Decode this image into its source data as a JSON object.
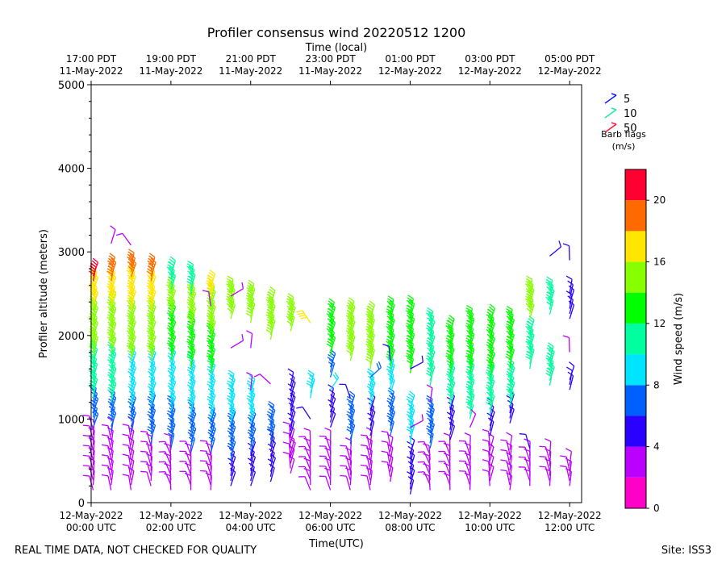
{
  "chart_data": {
    "type": "wind-barb profiler",
    "title": "Profiler consensus wind 20220512 1200",
    "top_axis_label": "Time (local)",
    "xlabel": "Time(UTC)",
    "ylabel": "Profiler altitude (meters)",
    "colorbar_label": "Wind speed (m/s)",
    "footer_left": "REAL TIME DATA, NOT CHECKED FOR QUALITY",
    "footer_right": "Site: ISS3",
    "x_range_hours": [
      0,
      12.3
    ],
    "ylim": [
      0,
      5000
    ],
    "grid": false,
    "y_ticks": [
      {
        "value": 0,
        "label": "0"
      },
      {
        "value": 1000,
        "label": "1000"
      },
      {
        "value": 2000,
        "label": "2000"
      },
      {
        "value": 3000,
        "label": "3000"
      },
      {
        "value": 4000,
        "label": "4000"
      },
      {
        "value": 5000,
        "label": "5000"
      }
    ],
    "x_ticks_utc": [
      {
        "hour": 0,
        "line1": "12-May-2022",
        "line2": "00:00 UTC"
      },
      {
        "hour": 2,
        "line1": "12-May-2022",
        "line2": "02:00 UTC"
      },
      {
        "hour": 4,
        "line1": "12-May-2022",
        "line2": "04:00 UTC"
      },
      {
        "hour": 6,
        "line1": "12-May-2022",
        "line2": "06:00 UTC"
      },
      {
        "hour": 8,
        "line1": "12-May-2022",
        "line2": "08:00 UTC"
      },
      {
        "hour": 10,
        "line1": "12-May-2022",
        "line2": "10:00 UTC"
      },
      {
        "hour": 12,
        "line1": "12-May-2022",
        "line2": "12:00 UTC"
      }
    ],
    "x_ticks_local": [
      {
        "hour": 0,
        "line1": "17:00 PDT",
        "line2": "11-May-2022"
      },
      {
        "hour": 2,
        "line1": "19:00 PDT",
        "line2": "11-May-2022"
      },
      {
        "hour": 4,
        "line1": "21:00 PDT",
        "line2": "11-May-2022"
      },
      {
        "hour": 6,
        "line1": "23:00 PDT",
        "line2": "11-May-2022"
      },
      {
        "hour": 8,
        "line1": "01:00 PDT",
        "line2": "12-May-2022"
      },
      {
        "hour": 10,
        "line1": "03:00 PDT",
        "line2": "12-May-2022"
      },
      {
        "hour": 12,
        "line1": "05:00 PDT",
        "line2": "12-May-2022"
      }
    ],
    "legend": {
      "entries": [
        {
          "label": "5",
          "color": "#1a1aff"
        },
        {
          "label": "10",
          "color": "#1fe9a0"
        },
        {
          "label": "50",
          "color": "#ff1a3a"
        }
      ],
      "title_line1": "Barb flags",
      "title_line2": "(m/s)"
    },
    "colorbar": {
      "min": 0,
      "max": 22,
      "ticks": [
        0,
        4,
        8,
        12,
        16,
        20
      ],
      "bands": [
        "#ff00c8",
        "#bb00ff",
        "#2a00ff",
        "#0060ff",
        "#00e5ff",
        "#00ff9e",
        "#00ff00",
        "#88ff00",
        "#ffe600",
        "#ff6a00",
        "#ff0030"
      ]
    },
    "profiles": [
      {
        "hour": 0.05,
        "layers": [
          [
            150,
            900,
            2.5
          ],
          [
            900,
            1250,
            6
          ],
          [
            1250,
            1750,
            10
          ],
          [
            1750,
            2350,
            14
          ],
          [
            2350,
            2650,
            16.5
          ],
          [
            2650,
            2750,
            21
          ]
        ],
        "scatter": []
      },
      {
        "hour": 0.5,
        "layers": [
          [
            150,
            850,
            2.5
          ],
          [
            850,
            1200,
            6
          ],
          [
            1200,
            1800,
            10
          ],
          [
            1800,
            2350,
            14
          ],
          [
            2350,
            2650,
            16.5
          ],
          [
            2650,
            2820,
            19
          ]
        ],
        "scatter": [
          [
            3100,
            2.5
          ]
        ]
      },
      {
        "hour": 1.0,
        "layers": [
          [
            150,
            850,
            3
          ],
          [
            850,
            1150,
            6
          ],
          [
            1150,
            1700,
            9.5
          ],
          [
            1700,
            2300,
            14
          ],
          [
            2300,
            2700,
            16
          ],
          [
            2700,
            2870,
            19
          ]
        ],
        "scatter": [
          [
            3080,
            2.5
          ]
        ]
      },
      {
        "hour": 1.5,
        "layers": [
          [
            200,
            700,
            3
          ],
          [
            700,
            1150,
            6
          ],
          [
            1150,
            1700,
            9.5
          ],
          [
            1700,
            2300,
            14
          ],
          [
            2300,
            2650,
            16
          ],
          [
            2650,
            2800,
            18
          ]
        ],
        "scatter": []
      },
      {
        "hour": 2.0,
        "layers": [
          [
            150,
            650,
            3
          ],
          [
            650,
            1100,
            6
          ],
          [
            1100,
            1700,
            9.5
          ],
          [
            1700,
            2250,
            13
          ],
          [
            2250,
            2550,
            15.5
          ],
          [
            2550,
            2750,
            10
          ]
        ],
        "scatter": []
      },
      {
        "hour": 2.5,
        "layers": [
          [
            150,
            600,
            3
          ],
          [
            600,
            1050,
            6
          ],
          [
            1050,
            1600,
            9.5
          ],
          [
            1600,
            2100,
            13
          ],
          [
            2100,
            2500,
            15
          ],
          [
            2500,
            2720,
            10
          ]
        ],
        "scatter": []
      },
      {
        "hour": 3.0,
        "layers": [
          [
            150,
            600,
            3
          ],
          [
            600,
            1000,
            6
          ],
          [
            1000,
            1550,
            9.5
          ],
          [
            1550,
            2000,
            13
          ],
          [
            2000,
            2450,
            15
          ],
          [
            2450,
            2600,
            17
          ]
        ],
        "scatter": [
          [
            2350,
            2.5
          ]
        ]
      },
      {
        "hour": 3.5,
        "layers": [
          [
            200,
            500,
            4
          ],
          [
            500,
            950,
            6
          ],
          [
            950,
            1400,
            9.5
          ],
          [
            2200,
            2500,
            15
          ]
        ],
        "scatter": [
          [
            1850,
            2.5
          ],
          [
            2470,
            2.5
          ]
        ]
      },
      {
        "hour": 4.0,
        "layers": [
          [
            200,
            600,
            4
          ],
          [
            600,
            950,
            6
          ],
          [
            950,
            1350,
            9
          ],
          [
            2150,
            2500,
            15
          ]
        ],
        "scatter": [
          [
            1850,
            2.5
          ],
          [
            1350,
            2.5
          ]
        ]
      },
      {
        "hour": 4.5,
        "layers": [
          [
            250,
            700,
            5
          ],
          [
            700,
            1050,
            6
          ],
          [
            1950,
            2400,
            15
          ]
        ],
        "scatter": [
          [
            1420,
            3
          ]
        ]
      },
      {
        "hour": 5.0,
        "layers": [
          [
            350,
            800,
            2
          ],
          [
            800,
            1100,
            4
          ],
          [
            1150,
            1400,
            5
          ],
          [
            2050,
            2300,
            14
          ]
        ],
        "scatter": [
          [
            550,
            2.5
          ]
        ]
      },
      {
        "hour": 5.5,
        "layers": [
          [
            150,
            700,
            2
          ],
          [
            1250,
            1400,
            9
          ]
        ],
        "scatter": [
          [
            2150,
            17
          ],
          [
            1000,
            5
          ]
        ]
      },
      {
        "hour": 6.0,
        "layers": [
          [
            150,
            700,
            2
          ],
          [
            900,
            1250,
            5
          ],
          [
            1500,
            1650,
            7
          ],
          [
            1750,
            2250,
            13
          ]
        ],
        "scatter": [
          [
            1350,
            9
          ]
        ]
      },
      {
        "hour": 6.5,
        "layers": [
          [
            150,
            600,
            2
          ],
          [
            700,
            1150,
            6
          ],
          [
            1700,
            2250,
            14
          ]
        ],
        "scatter": [
          [
            1250,
            5
          ]
        ]
      },
      {
        "hour": 7.0,
        "layers": [
          [
            150,
            700,
            2
          ],
          [
            800,
            1100,
            5
          ],
          [
            1150,
            1400,
            9
          ],
          [
            1600,
            2250,
            14
          ]
        ],
        "scatter": [
          [
            1500,
            7
          ]
        ]
      },
      {
        "hour": 7.5,
        "layers": [
          [
            250,
            700,
            2
          ],
          [
            800,
            1200,
            6
          ],
          [
            1300,
            1550,
            9
          ],
          [
            1600,
            2300,
            13
          ]
        ],
        "scatter": [
          [
            1700,
            4
          ]
        ]
      },
      {
        "hour": 8.0,
        "layers": [
          [
            100,
            600,
            5
          ],
          [
            700,
            1150,
            9
          ],
          [
            1550,
            2300,
            13
          ]
        ],
        "scatter": [
          [
            1600,
            5
          ],
          [
            900,
            2
          ]
        ]
      },
      {
        "hour": 8.5,
        "layers": [
          [
            150,
            600,
            2
          ],
          [
            650,
            1100,
            7
          ],
          [
            1400,
            2150,
            10
          ]
        ],
        "scatter": [
          [
            1200,
            2
          ]
        ]
      },
      {
        "hour": 9.0,
        "layers": [
          [
            150,
            650,
            2
          ],
          [
            750,
            1150,
            5
          ],
          [
            1150,
            1550,
            10
          ],
          [
            1550,
            2050,
            13
          ]
        ],
        "scatter": []
      },
      {
        "hour": 9.5,
        "layers": [
          [
            150,
            650,
            2
          ],
          [
            1000,
            1550,
            10
          ],
          [
            1550,
            2200,
            13.5
          ]
        ],
        "scatter": [
          [
            900,
            2
          ]
        ]
      },
      {
        "hour": 10.0,
        "layers": [
          [
            200,
            700,
            2
          ],
          [
            800,
            1050,
            5
          ],
          [
            1050,
            1500,
            10
          ],
          [
            1500,
            2200,
            13
          ]
        ],
        "scatter": []
      },
      {
        "hour": 10.5,
        "layers": [
          [
            150,
            650,
            2
          ],
          [
            950,
            1150,
            5
          ],
          [
            1150,
            1550,
            10
          ],
          [
            1600,
            2150,
            13
          ]
        ],
        "scatter": []
      },
      {
        "hour": 11.0,
        "layers": [
          [
            200,
            600,
            2
          ],
          [
            1600,
            2050,
            11
          ],
          [
            2200,
            2500,
            14
          ]
        ],
        "scatter": [
          [
            650,
            4
          ]
        ]
      },
      {
        "hour": 11.5,
        "layers": [
          [
            200,
            600,
            2
          ],
          [
            1400,
            1750,
            10
          ],
          [
            2250,
            2500,
            10
          ]
        ],
        "scatter": [
          [
            2950,
            5
          ]
        ]
      },
      {
        "hour": 12.0,
        "layers": [
          [
            200,
            450,
            2
          ],
          [
            1350,
            1500,
            5
          ],
          [
            2200,
            2500,
            5
          ]
        ],
        "scatter": [
          [
            2900,
            5
          ],
          [
            1800,
            2
          ]
        ]
      }
    ]
  }
}
